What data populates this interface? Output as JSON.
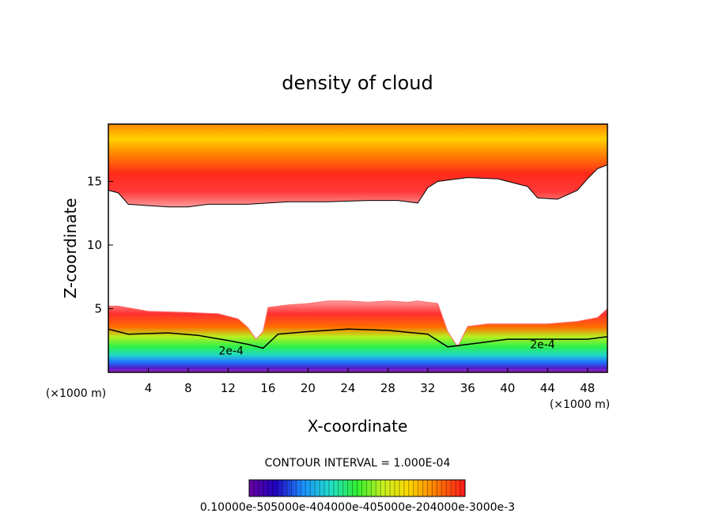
{
  "chart_data": {
    "type": "heatmap",
    "title": "density of cloud",
    "xlabel": "X-coordinate",
    "ylabel": "Z-coordinate",
    "x_unit": "(×1000 m)",
    "x_unit_right": "(×1000 m)",
    "xlim": [
      0,
      50
    ],
    "ylim": [
      0,
      19.5
    ],
    "x_ticks": [
      4,
      8,
      12,
      16,
      20,
      24,
      28,
      32,
      36,
      40,
      44,
      48
    ],
    "y_ticks": [
      5,
      10,
      15
    ],
    "contour_interval_text": "CONTOUR INTERVAL = 1.000E-04",
    "contour_labels": [
      {
        "text": "2e-4",
        "x": 12.3,
        "z": 1.7
      },
      {
        "text": "2e-4",
        "x": 43.5,
        "z": 2.2
      }
    ],
    "colorbar": {
      "min": 0.0001,
      "max": 0.0003,
      "tick_labels_text": "0.10000e-505000e-404000e-405000e-204000e-3000e-3"
    },
    "regions": {
      "upper_cloud_base_z": [
        [
          0,
          14.3
        ],
        [
          1,
          14.1
        ],
        [
          2,
          13.2
        ],
        [
          4,
          13.1
        ],
        [
          6,
          13.0
        ],
        [
          8,
          13.0
        ],
        [
          10,
          13.2
        ],
        [
          14,
          13.2
        ],
        [
          18,
          13.4
        ],
        [
          22,
          13.4
        ],
        [
          26,
          13.5
        ],
        [
          29,
          13.5
        ],
        [
          31,
          13.3
        ],
        [
          32,
          14.5
        ],
        [
          33,
          15.0
        ],
        [
          36,
          15.3
        ],
        [
          39,
          15.2
        ],
        [
          42,
          14.6
        ],
        [
          43,
          13.7
        ],
        [
          45,
          13.6
        ],
        [
          47,
          14.3
        ],
        [
          48,
          15.2
        ],
        [
          49,
          16.0
        ],
        [
          50,
          16.3
        ]
      ],
      "lower_cloud_top_z": [
        [
          0,
          5.2
        ],
        [
          1,
          5.2
        ],
        [
          4,
          4.8
        ],
        [
          8,
          4.7
        ],
        [
          11,
          4.6
        ],
        [
          13,
          4.2
        ],
        [
          14,
          3.5
        ],
        [
          14.8,
          2.6
        ],
        [
          15.5,
          3.2
        ],
        [
          16,
          5.1
        ],
        [
          18,
          5.3
        ],
        [
          20,
          5.4
        ],
        [
          22,
          5.6
        ],
        [
          24,
          5.6
        ],
        [
          26,
          5.5
        ],
        [
          28,
          5.6
        ],
        [
          30,
          5.5
        ],
        [
          31,
          5.6
        ],
        [
          33,
          5.4
        ],
        [
          34,
          3.2
        ],
        [
          35,
          2.0
        ],
        [
          36,
          3.6
        ],
        [
          38,
          3.8
        ],
        [
          44,
          3.8
        ],
        [
          47,
          4.0
        ],
        [
          49,
          4.3
        ],
        [
          50,
          5.0
        ]
      ],
      "contour_2e4_z": [
        [
          0,
          3.4
        ],
        [
          2,
          3.0
        ],
        [
          6,
          3.1
        ],
        [
          9,
          2.9
        ],
        [
          12,
          2.5
        ],
        [
          14,
          2.2
        ],
        [
          15.5,
          1.9
        ],
        [
          17,
          3.0
        ],
        [
          20,
          3.2
        ],
        [
          24,
          3.4
        ],
        [
          28,
          3.3
        ],
        [
          32,
          3.0
        ],
        [
          34,
          2.0
        ],
        [
          36,
          2.2
        ],
        [
          40,
          2.6
        ],
        [
          44,
          2.6
        ],
        [
          48,
          2.6
        ],
        [
          50,
          2.8
        ]
      ]
    }
  }
}
